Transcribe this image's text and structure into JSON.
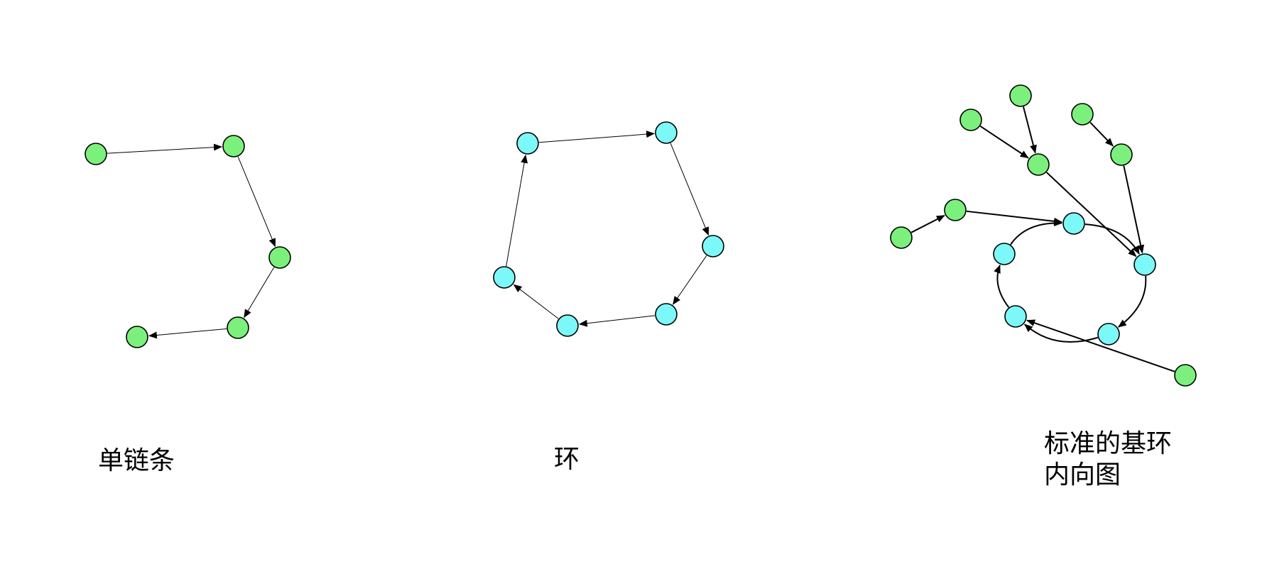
{
  "colors": {
    "tree_node": "#7cf07c",
    "cycle_node": "#7cf8f8",
    "stroke": "#000000",
    "background": "#ffffff"
  },
  "captions": {
    "chain": "单链条",
    "cycle": "环",
    "pseudotree": "标准的基环\n内向图"
  },
  "diagrams": [
    {
      "id": "chain",
      "nodes": [
        {
          "id": "a1",
          "kind": "tree"
        },
        {
          "id": "a2",
          "kind": "tree"
        },
        {
          "id": "a3",
          "kind": "tree"
        },
        {
          "id": "a4",
          "kind": "tree"
        },
        {
          "id": "a5",
          "kind": "tree"
        }
      ],
      "edges": [
        {
          "from": "a1",
          "to": "a2"
        },
        {
          "from": "a2",
          "to": "a3"
        },
        {
          "from": "a3",
          "to": "a4"
        },
        {
          "from": "a4",
          "to": "a5"
        }
      ]
    },
    {
      "id": "cycle",
      "nodes": [
        {
          "id": "b1",
          "kind": "cycle"
        },
        {
          "id": "b2",
          "kind": "cycle"
        },
        {
          "id": "b3",
          "kind": "cycle"
        },
        {
          "id": "b4",
          "kind": "cycle"
        },
        {
          "id": "b5",
          "kind": "cycle"
        },
        {
          "id": "b6",
          "kind": "cycle"
        }
      ],
      "edges": [
        {
          "from": "b1",
          "to": "b2"
        },
        {
          "from": "b2",
          "to": "b3"
        },
        {
          "from": "b3",
          "to": "b4"
        },
        {
          "from": "b4",
          "to": "b5"
        },
        {
          "from": "b5",
          "to": "b6"
        },
        {
          "from": "b6",
          "to": "b1"
        }
      ]
    },
    {
      "id": "pseudotree",
      "nodes": [
        {
          "id": "c1",
          "kind": "cycle"
        },
        {
          "id": "c2",
          "kind": "cycle"
        },
        {
          "id": "c3",
          "kind": "cycle"
        },
        {
          "id": "c4",
          "kind": "cycle"
        },
        {
          "id": "c5",
          "kind": "cycle"
        },
        {
          "id": "t1",
          "kind": "tree"
        },
        {
          "id": "t2",
          "kind": "tree"
        },
        {
          "id": "t3",
          "kind": "tree"
        },
        {
          "id": "t4",
          "kind": "tree"
        },
        {
          "id": "t5",
          "kind": "tree"
        },
        {
          "id": "t6",
          "kind": "tree"
        },
        {
          "id": "t7",
          "kind": "tree"
        },
        {
          "id": "t8",
          "kind": "tree"
        },
        {
          "id": "t9",
          "kind": "tree"
        }
      ],
      "edges": [
        {
          "from": "c1",
          "to": "c2"
        },
        {
          "from": "c2",
          "to": "c3"
        },
        {
          "from": "c3",
          "to": "c4"
        },
        {
          "from": "c4",
          "to": "c5"
        },
        {
          "from": "c5",
          "to": "c1"
        },
        {
          "from": "t1",
          "to": "t2"
        },
        {
          "from": "t2",
          "to": "c1"
        },
        {
          "from": "t3",
          "to": "t4"
        },
        {
          "from": "t5",
          "to": "t4"
        },
        {
          "from": "t4",
          "to": "c2"
        },
        {
          "from": "t6",
          "to": "t7"
        },
        {
          "from": "t7",
          "to": "c2"
        },
        {
          "from": "t8",
          "to": "c4"
        }
      ]
    }
  ]
}
